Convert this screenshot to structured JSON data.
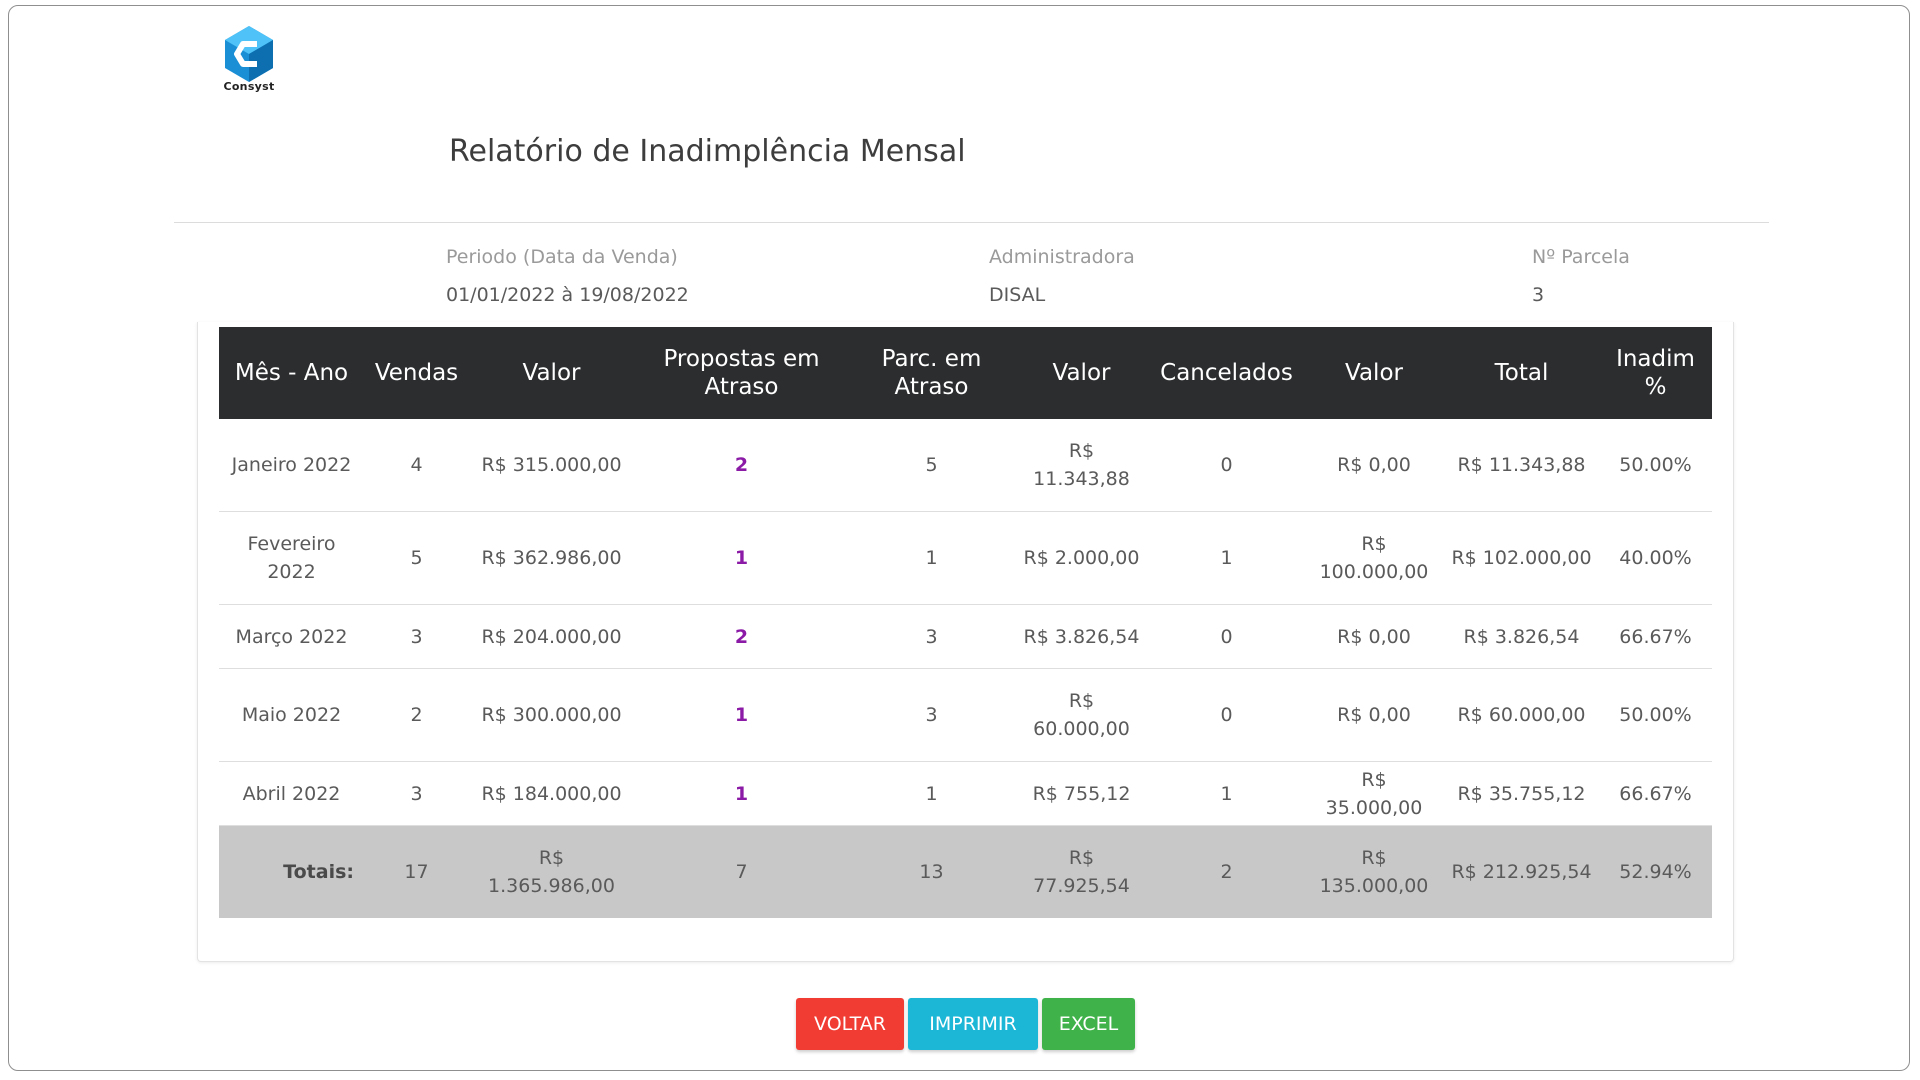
{
  "brand": {
    "name": "Consyst"
  },
  "page": {
    "title": "Relatório de Inadimplência Mensal"
  },
  "filters": {
    "periodo": {
      "label": "Periodo (Data da Venda)",
      "value": "01/01/2022 à 19/08/2022"
    },
    "administradora": {
      "label": "Administradora",
      "value": "DISAL"
    },
    "parcela": {
      "label": "Nº Parcela",
      "value": "3"
    }
  },
  "table": {
    "headers": [
      "Mês - Ano",
      "Vendas",
      "Valor",
      "Propostas em Atraso",
      "Parc. em Atraso",
      "Valor",
      "Cancelados",
      "Valor",
      "Total",
      "Inadim %"
    ],
    "rows": [
      [
        "Janeiro 2022",
        "4",
        "R$ 315.000,00",
        "2",
        "5",
        "R$ 11.343,88",
        "0",
        "R$ 0,00",
        "R$ 11.343,88",
        "50.00%"
      ],
      [
        "Fevereiro 2022",
        "5",
        "R$ 362.986,00",
        "1",
        "1",
        "R$ 2.000,00",
        "1",
        "R$ 100.000,00",
        "R$ 102.000,00",
        "40.00%"
      ],
      [
        "Março 2022",
        "3",
        "R$ 204.000,00",
        "2",
        "3",
        "R$ 3.826,54",
        "0",
        "R$ 0,00",
        "R$ 3.826,54",
        "66.67%"
      ],
      [
        "Maio 2022",
        "2",
        "R$ 300.000,00",
        "1",
        "3",
        "R$ 60.000,00",
        "0",
        "R$ 0,00",
        "R$ 60.000,00",
        "50.00%"
      ],
      [
        "Abril 2022",
        "3",
        "R$ 184.000,00",
        "1",
        "1",
        "R$ 755,12",
        "1",
        "R$ 35.000,00",
        "R$ 35.755,12",
        "66.67%"
      ]
    ],
    "totals": [
      "Totais:",
      "17",
      "R$ 1.365.986,00",
      "7",
      "13",
      "R$ 77.925,54",
      "2",
      "R$ 135.000,00",
      "R$ 212.925,54",
      "52.94%"
    ]
  },
  "buttons": {
    "voltar": "VOLTAR",
    "imprimir": "IMPRIMIR",
    "excel": "EXCEL"
  },
  "colors": {
    "header_bg": "#2b2d2f",
    "atraso": "#8b1aa6",
    "totals_bg": "#c8c8c8",
    "voltar": "#f13c34",
    "imprimir": "#1cb6d7",
    "excel": "#3fb24a"
  }
}
